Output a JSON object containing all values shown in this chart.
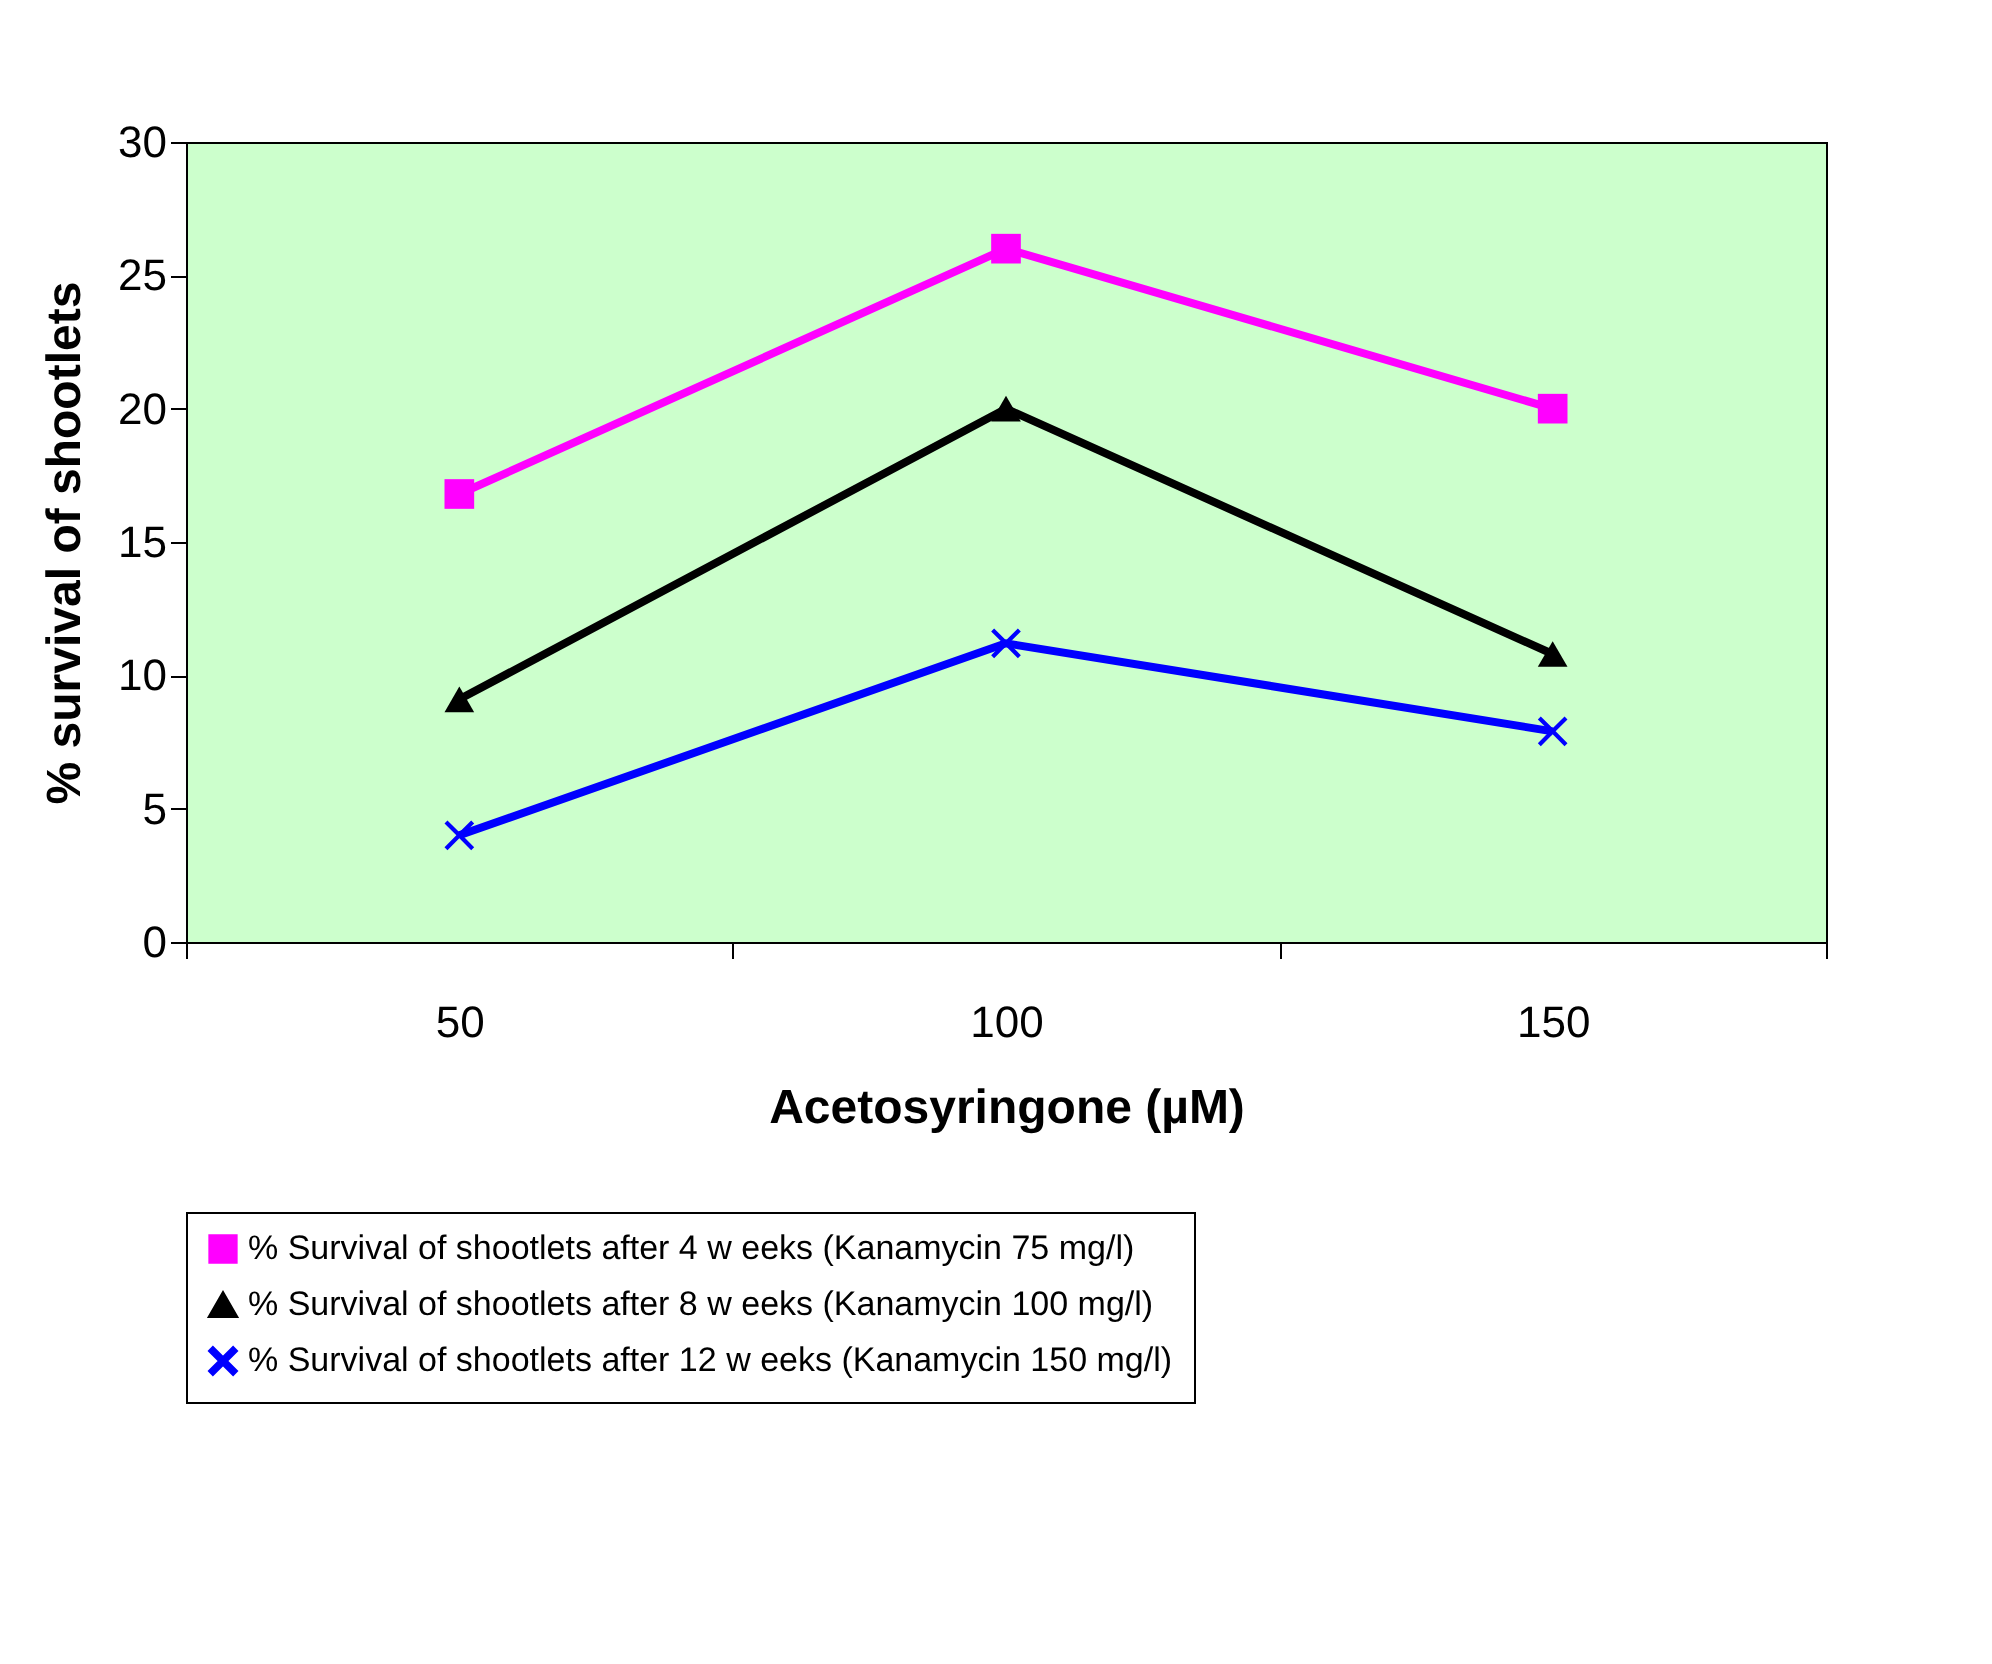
{
  "chart_data": {
    "type": "line",
    "xlabel": "Acetosyringone (µM)",
    "ylabel": "% survival of shootlets",
    "categories": [
      "50",
      "100",
      "150"
    ],
    "ylim": [
      0,
      30
    ],
    "yticks": [
      0,
      5,
      10,
      15,
      20,
      25,
      30
    ],
    "grid": false,
    "legend": "bottom",
    "series": [
      {
        "name": "% Survival of shootlets after 4 w eeks (Kanamycin 75 mg/l)",
        "color": "#ff00ff",
        "marker": "square",
        "values": [
          16.8,
          26.0,
          20.0
        ]
      },
      {
        "name": "% Survival of shootlets after 8 w eeks (Kanamycin 100 mg/l)",
        "color": "#000000",
        "marker": "triangle",
        "values": [
          9.1,
          20.0,
          10.8
        ]
      },
      {
        "name": "% Survival of shootlets after 12 w eeks (Kanamycin 150 mg/l)",
        "color": "#0000ff",
        "marker": "cross",
        "values": [
          4.0,
          11.2,
          7.9
        ]
      }
    ]
  }
}
